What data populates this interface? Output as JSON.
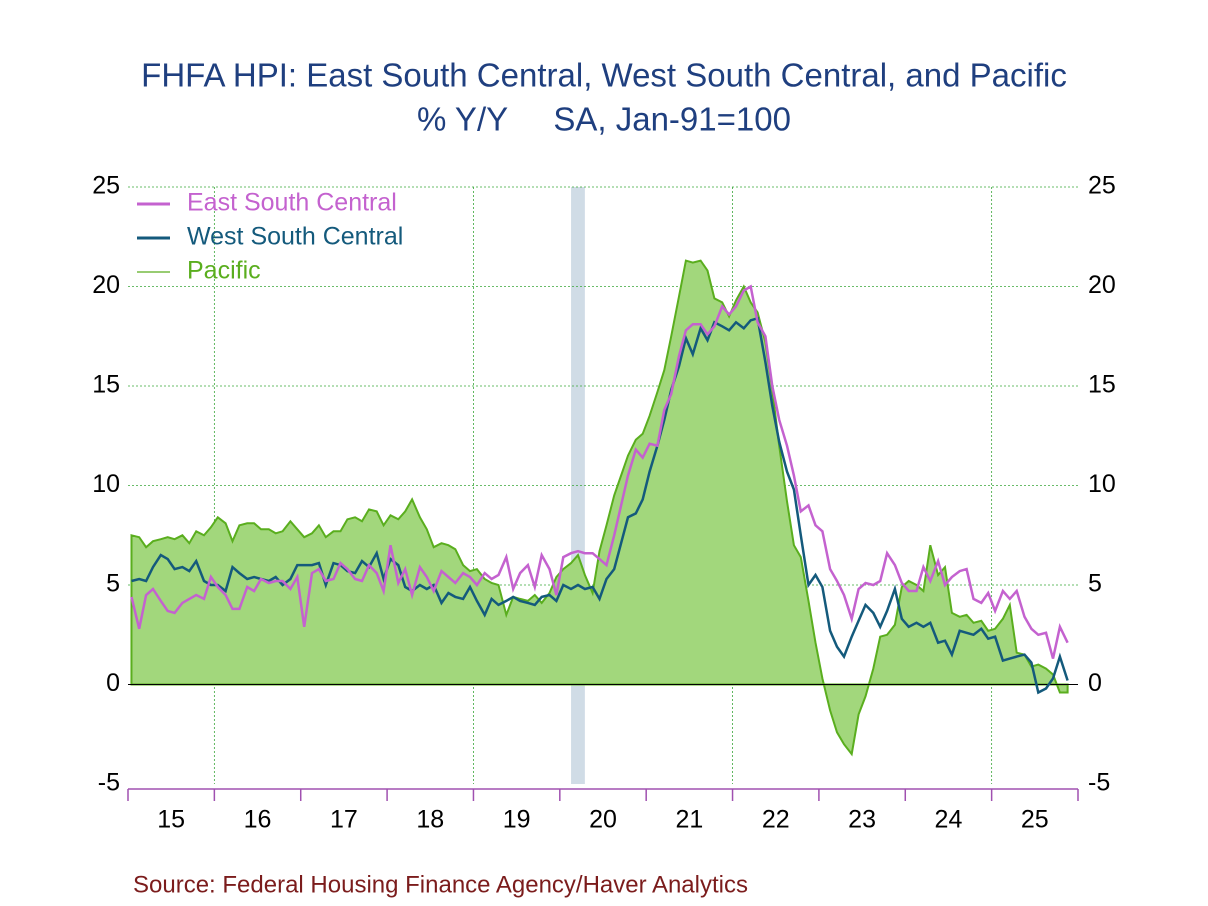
{
  "chart_data": {
    "type": "line",
    "title": "FHFA HPI: East South Central, West South Central, and Pacific",
    "subtitle": "% Y/Y     SA, Jan-91=100",
    "source": "Source:  Federal Housing Finance Agency/Haver Analytics",
    "xlim": [
      15,
      26
    ],
    "xticks": [
      15,
      16,
      17,
      18,
      19,
      20,
      21,
      22,
      23,
      24,
      25,
      26
    ],
    "xtick_labels": [
      {
        "value": 15.5,
        "label": "15"
      },
      {
        "value": 16.5,
        "label": "16"
      },
      {
        "value": 17.5,
        "label": "17"
      },
      {
        "value": 18.5,
        "label": "18"
      },
      {
        "value": 19.5,
        "label": "19"
      },
      {
        "value": 20.5,
        "label": "20"
      },
      {
        "value": 21.5,
        "label": "21"
      },
      {
        "value": 22.5,
        "label": "22"
      },
      {
        "value": 23.5,
        "label": "23"
      },
      {
        "value": 24.5,
        "label": "24"
      },
      {
        "value": 25.5,
        "label": "25"
      }
    ],
    "x_grid": [
      16,
      19,
      22,
      25
    ],
    "ylim": [
      -5,
      25
    ],
    "yticks": [
      -5,
      0,
      5,
      10,
      15,
      20,
      25
    ],
    "y2lim": [
      -5,
      25
    ],
    "y2ticks": [
      -5,
      0,
      5,
      10,
      15,
      20,
      25
    ],
    "grid": true,
    "legend": "upper-left",
    "shaded_regions": [
      {
        "xlim": [
          20.13,
          20.29
        ],
        "color": "#d0dce6"
      }
    ],
    "x": [
      15.04,
      15.13,
      15.21,
      15.29,
      15.38,
      15.46,
      15.54,
      15.63,
      15.71,
      15.79,
      15.88,
      15.96,
      16.04,
      16.13,
      16.21,
      16.29,
      16.38,
      16.46,
      16.54,
      16.63,
      16.71,
      16.79,
      16.88,
      16.96,
      17.04,
      17.13,
      17.21,
      17.29,
      17.38,
      17.46,
      17.54,
      17.63,
      17.71,
      17.79,
      17.88,
      17.96,
      18.04,
      18.13,
      18.21,
      18.29,
      18.38,
      18.46,
      18.54,
      18.63,
      18.71,
      18.79,
      18.88,
      18.96,
      19.04,
      19.13,
      19.21,
      19.29,
      19.38,
      19.46,
      19.54,
      19.63,
      19.71,
      19.79,
      19.88,
      19.96,
      20.04,
      20.13,
      20.21,
      20.29,
      20.38,
      20.46,
      20.54,
      20.63,
      20.71,
      20.79,
      20.88,
      20.96,
      21.04,
      21.13,
      21.21,
      21.29,
      21.38,
      21.46,
      21.54,
      21.63,
      21.71,
      21.79,
      21.88,
      21.96,
      22.04,
      22.13,
      22.21,
      22.29,
      22.38,
      22.46,
      22.54,
      22.63,
      22.71,
      22.79,
      22.88,
      22.96,
      23.04,
      23.13,
      23.21,
      23.29,
      23.38,
      23.46,
      23.54,
      23.63,
      23.71,
      23.79,
      23.88,
      23.96,
      24.04,
      24.13,
      24.21,
      24.29,
      24.38,
      24.46,
      24.54,
      24.63,
      24.71,
      24.79,
      24.88,
      24.96,
      25.04,
      25.13,
      25.21,
      25.29,
      25.38,
      25.46,
      25.54,
      25.63,
      25.71,
      25.79,
      25.88
    ],
    "series": [
      {
        "name": "Pacific",
        "color": "#5aae1e",
        "fill": "#a2d77c",
        "area": true,
        "values": [
          7.5,
          7.4,
          6.9,
          7.2,
          7.3,
          7.4,
          7.3,
          7.5,
          7.1,
          7.7,
          7.5,
          7.9,
          8.4,
          8.1,
          7.2,
          8.0,
          8.1,
          8.1,
          7.8,
          7.8,
          7.6,
          7.7,
          8.2,
          7.8,
          7.4,
          7.6,
          8.0,
          7.4,
          7.7,
          7.7,
          8.3,
          8.4,
          8.2,
          8.8,
          8.7,
          8.0,
          8.5,
          8.3,
          8.7,
          9.3,
          8.4,
          7.8,
          6.9,
          7.1,
          7.0,
          6.8,
          6.0,
          5.7,
          5.8,
          5.3,
          5.1,
          5.0,
          3.5,
          4.4,
          4.3,
          4.2,
          4.5,
          4.1,
          4.6,
          5.4,
          5.8,
          6.1,
          6.5,
          5.5,
          4.6,
          6.7,
          8.0,
          9.5,
          10.5,
          11.5,
          12.3,
          12.6,
          13.5,
          14.7,
          15.8,
          17.5,
          19.5,
          21.3,
          21.2,
          21.3,
          20.8,
          19.4,
          19.2,
          18.5,
          19.3,
          20.0,
          19.2,
          18.7,
          17.2,
          14.8,
          12.0,
          9.2,
          7.0,
          6.4,
          4.2,
          2.1,
          0.3,
          -1.3,
          -2.4,
          -3.0,
          -3.5,
          -1.5,
          -0.6,
          0.8,
          2.4,
          2.5,
          3.0,
          4.9,
          5.2,
          5.0,
          4.7,
          7.0,
          5.5,
          5.9,
          3.6,
          3.4,
          3.5,
          3.1,
          3.2,
          2.7,
          2.8,
          3.3,
          4.0,
          1.6,
          1.5,
          0.9,
          1.0,
          0.8,
          0.5,
          -0.4,
          -0.4
        ]
      },
      {
        "name": "East South Central",
        "color": "#c462cf",
        "values": [
          4.4,
          2.8,
          4.5,
          4.8,
          4.2,
          3.7,
          3.6,
          4.1,
          4.3,
          4.5,
          4.3,
          5.4,
          4.9,
          4.5,
          3.8,
          3.8,
          4.9,
          4.7,
          5.3,
          5.1,
          5.2,
          5.2,
          4.8,
          5.4,
          2.9,
          5.6,
          5.8,
          5.2,
          5.3,
          6.1,
          5.8,
          5.3,
          5.2,
          6.0,
          5.6,
          4.7,
          7.0,
          5.1,
          5.8,
          4.5,
          5.9,
          5.4,
          4.7,
          5.7,
          5.4,
          5.1,
          5.6,
          5.4,
          5.0,
          5.6,
          5.3,
          5.5,
          6.4,
          4.8,
          5.6,
          6.0,
          4.9,
          6.5,
          5.8,
          4.5,
          6.4,
          6.6,
          6.7,
          6.6,
          6.6,
          6.3,
          6.0,
          7.5,
          9.0,
          10.5,
          11.8,
          11.4,
          12.1,
          12.0,
          13.8,
          14.6,
          16.5,
          17.8,
          18.1,
          18.1,
          17.6,
          18.0,
          19.0,
          18.6,
          19.0,
          19.8,
          20.0,
          18.2,
          17.5,
          15.0,
          13.3,
          12.0,
          10.5,
          8.7,
          9.0,
          8.0,
          7.7,
          5.8,
          5.2,
          4.5,
          3.3,
          4.8,
          5.1,
          5.0,
          5.2,
          6.6,
          6.0,
          5.1,
          4.7,
          4.7,
          5.9,
          5.2,
          6.2,
          5.0,
          5.4,
          5.7,
          5.8,
          4.3,
          4.1,
          4.6,
          3.7,
          4.7,
          4.3,
          4.7,
          3.4,
          2.8,
          2.5,
          2.6,
          1.3,
          2.9,
          2.1
        ]
      },
      {
        "name": "West South Central",
        "color": "#145a7c",
        "values": [
          5.2,
          5.3,
          5.2,
          5.9,
          6.5,
          6.3,
          5.8,
          5.9,
          5.7,
          6.2,
          5.2,
          5.0,
          5.0,
          4.7,
          5.9,
          5.6,
          5.3,
          5.4,
          5.3,
          5.2,
          5.4,
          5.0,
          5.3,
          6.0,
          6.0,
          6.0,
          6.1,
          5.0,
          6.1,
          6.0,
          5.7,
          5.6,
          6.2,
          5.9,
          6.6,
          5.3,
          6.3,
          6.0,
          4.9,
          4.7,
          5.0,
          4.8,
          5.0,
          4.1,
          4.6,
          4.4,
          4.3,
          4.9,
          4.2,
          3.5,
          4.3,
          4.0,
          4.2,
          4.4,
          4.2,
          4.1,
          4.0,
          4.4,
          4.5,
          4.2,
          5.0,
          4.8,
          5.0,
          4.8,
          4.9,
          4.3,
          5.3,
          5.8,
          7.1,
          8.4,
          8.6,
          9.3,
          10.7,
          12.0,
          13.3,
          14.8,
          16.0,
          17.4,
          16.6,
          17.9,
          17.3,
          18.2,
          18.0,
          17.8,
          18.2,
          17.9,
          18.3,
          18.4,
          16.2,
          14.0,
          12.2,
          10.7,
          9.8,
          7.5,
          5.0,
          5.5,
          4.9,
          2.7,
          1.9,
          1.4,
          2.4,
          3.2,
          4.0,
          3.6,
          2.9,
          3.7,
          4.8,
          3.3,
          2.9,
          3.1,
          2.9,
          3.1,
          2.1,
          2.2,
          1.5,
          2.7,
          2.6,
          2.5,
          2.8,
          2.3,
          2.4,
          1.2,
          1.3,
          1.4,
          1.5,
          1.1,
          -0.4,
          -0.2,
          0.3,
          1.4,
          0.2
        ]
      }
    ]
  }
}
